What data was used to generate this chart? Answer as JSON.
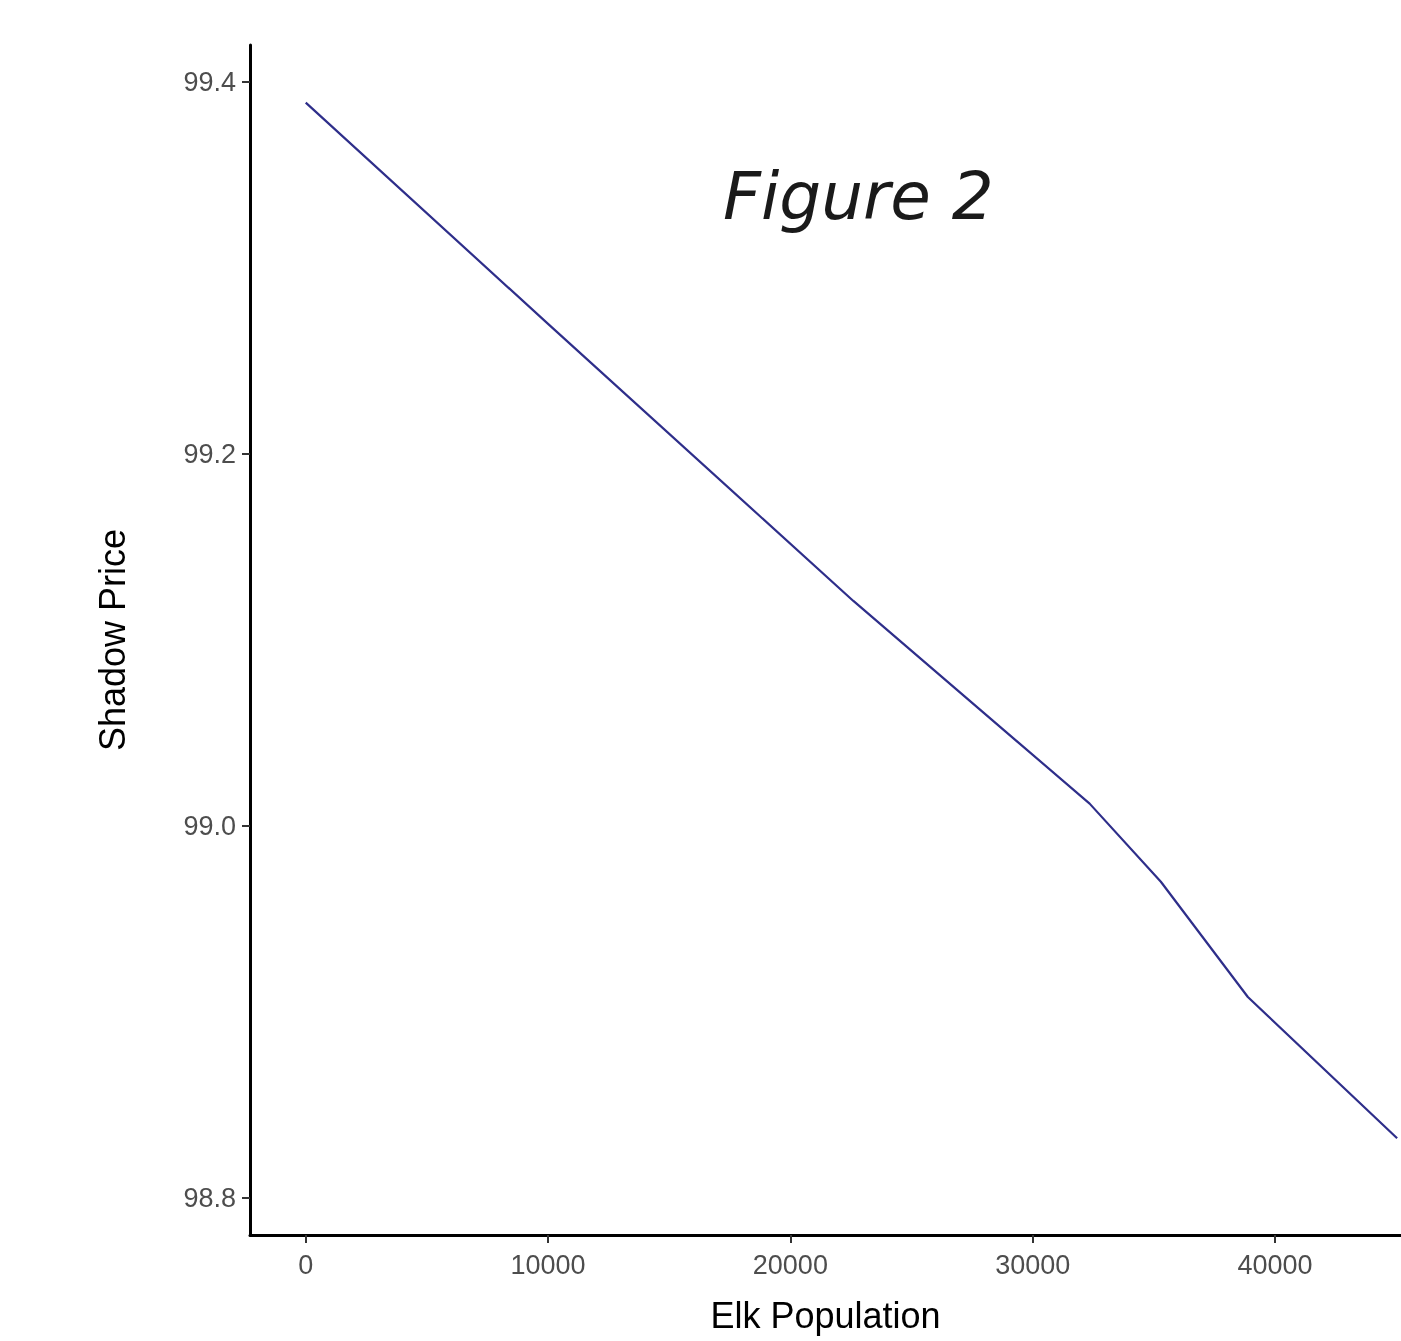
{
  "chart_data": {
    "type": "line",
    "title": "Figure 2",
    "xlabel": "Elk Population",
    "ylabel": "Shadow Price",
    "x": [
      0,
      10000,
      22600,
      32350,
      35290,
      38880,
      45040
    ],
    "series": [
      {
        "color": "#2e2e8a",
        "values": [
          99.389,
          99.27,
          99.121,
          99.012,
          98.97,
          98.908,
          98.832
        ]
      }
    ],
    "xlim": [
      -2300,
      45200
    ],
    "xticks": [
      0,
      10000,
      20000,
      30000,
      40000
    ],
    "ylim": [
      98.78,
      99.42
    ],
    "yticks": [
      {
        "value": 98.8,
        "label": "98.8"
      },
      {
        "value": 99.0,
        "label": "99.0"
      },
      {
        "value": 99.2,
        "label": "99.2"
      },
      {
        "value": 99.4,
        "label": "99.4"
      }
    ],
    "grid": false,
    "marker": "none",
    "line_style": "solid"
  }
}
